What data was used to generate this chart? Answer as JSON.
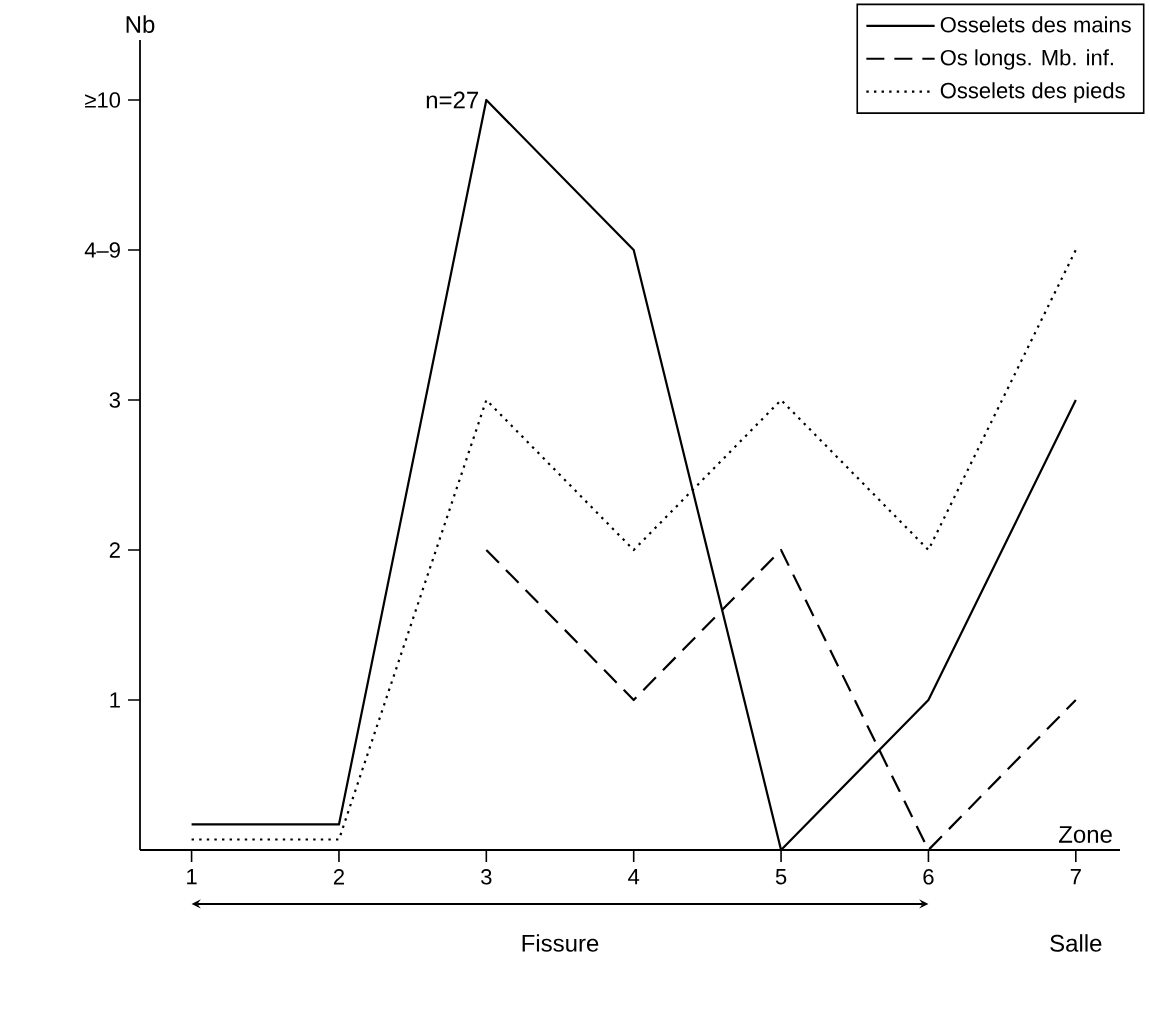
{
  "chart_data": {
    "type": "line",
    "xlabel": "Zone",
    "ylabel": "Nb",
    "x": [
      1,
      2,
      3,
      4,
      5,
      6,
      7
    ],
    "xlim": [
      0.65,
      7.3
    ],
    "ylim": [
      0,
      5.4
    ],
    "xticks": [
      1,
      2,
      3,
      4,
      5,
      6,
      7
    ],
    "yticks": [
      1,
      2,
      3,
      {
        "value": 4,
        "label": "4–9"
      },
      {
        "value": 5,
        "label": "≥10"
      }
    ],
    "grid": false,
    "legend": "top right",
    "marker": "none",
    "series": [
      {
        "name": "Osselets des mains",
        "color": "#000000",
        "line_style": "solid",
        "values": [
          0.17,
          0.17,
          5,
          4,
          0,
          1,
          3
        ]
      },
      {
        "name": "Os longs. Mb. inf.",
        "color": "#000000",
        "line_style": "dashed",
        "values": [
          null,
          null,
          2,
          1,
          2,
          0,
          1
        ]
      },
      {
        "name": "Osselets des pieds",
        "color": "#000000",
        "line_style": "dotted",
        "values": [
          0.07,
          0.07,
          3,
          2,
          3,
          2,
          4
        ]
      }
    ],
    "annotations": [
      {
        "text": "n=27",
        "x": 3,
        "y": 5
      },
      "Fissure",
      "Salle"
    ]
  }
}
